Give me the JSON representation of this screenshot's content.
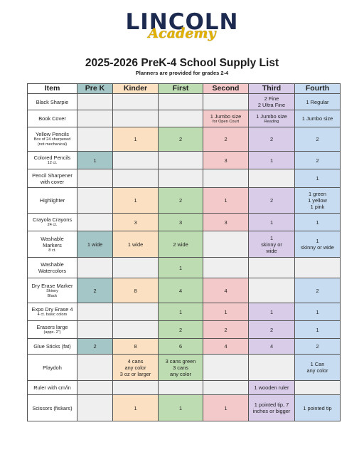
{
  "logo": {
    "main": "LINCOLN",
    "script": "Academy"
  },
  "title": "2025-2026 PreK-4 School Supply List",
  "subtitle": "Planners are provided for grades 2-4",
  "columns": [
    "Item",
    "Pre K",
    "Kinder",
    "First",
    "Second",
    "Third",
    "Fourth"
  ],
  "colors": {
    "prek": "#a5c6c6",
    "kinder": "#fbe1c1",
    "first": "#bedcb1",
    "second": "#f3c9c9",
    "third": "#d8cce9",
    "fourth": "#c7dcf0",
    "blank": "#efefef"
  },
  "rows": [
    {
      "item": [
        "Black Sharpie"
      ],
      "h": 23,
      "cells": [
        "",
        "",
        "",
        "",
        "2 Fine\n2 Ultra Fine",
        "1 Regular"
      ]
    },
    {
      "item": [
        "Book Cover"
      ],
      "h": 24,
      "cells": [
        "",
        "",
        "",
        "1 Jumbo size|for Open Court",
        "1 Jumbo size|Reading",
        "1 Jumbo size"
      ]
    },
    {
      "item": [
        "Yellow Pencils",
        "Box of 24 sharpened",
        "(not mechanical)"
      ],
      "h": 34,
      "cells": [
        "",
        "1",
        "2",
        "2",
        "2",
        "2"
      ]
    },
    {
      "item": [
        "Colored Pencils",
        "12 ct."
      ],
      "h": 25,
      "cells": [
        "1",
        "",
        "",
        "3",
        "1",
        "2"
      ]
    },
    {
      "item": [
        "Pencil Sharpener",
        "with cover"
      ],
      "h": 26,
      "cells": [
        "",
        "",
        "",
        "",
        "",
        "1"
      ]
    },
    {
      "item": [
        "Highlighter"
      ],
      "h": 36,
      "cells": [
        "",
        "1",
        "2",
        "1",
        "2",
        "1 green\n1 yellow\n1 pink"
      ]
    },
    {
      "item": [
        "Crayola Crayons",
        "24 ct."
      ],
      "h": 25,
      "cells": [
        "",
        "3",
        "3",
        "3",
        "1",
        "1"
      ]
    },
    {
      "item": [
        "Washable",
        "Markers",
        "8 ct."
      ],
      "h": 37,
      "cells": [
        "1 wide",
        "1 wide",
        "2 wide",
        "",
        "1\nskinny or\nwide",
        "1\nskinny or wide"
      ]
    },
    {
      "item": [
        "Washable",
        "Watercolors"
      ],
      "h": 29,
      "cells": [
        "",
        "",
        "1",
        "",
        "",
        ""
      ]
    },
    {
      "item": [
        "Dry Erase Marker",
        "Skinny",
        "Black"
      ],
      "h": 35,
      "cells": [
        "2",
        "8",
        "4",
        "4",
        "",
        "2"
      ]
    },
    {
      "item": [
        "Expo Dry Erase 4",
        "4 ct. basic colors"
      ],
      "h": 25,
      "cells": [
        "",
        "",
        "1",
        "1",
        "1",
        "1"
      ]
    },
    {
      "item": [
        "Erasers large",
        "(appx. 2\")"
      ],
      "h": 25,
      "cells": [
        "",
        "",
        "2",
        "2",
        "2",
        "1"
      ]
    },
    {
      "item": [
        "Glue Sticks (fat)"
      ],
      "h": 22,
      "cells": [
        "2",
        "8",
        "6",
        "4",
        "4",
        "2"
      ]
    },
    {
      "item": [
        "Playdoh"
      ],
      "h": 37,
      "cells": [
        "",
        "4 cans\nany color\n3 oz or larger",
        "3 cans green\n3 cans\nany color",
        "",
        "",
        "1 Can\nany color"
      ]
    },
    {
      "item": [
        "Ruler with cm/in"
      ],
      "h": 20,
      "cells": [
        "",
        "",
        "",
        "",
        "1 wooden ruler",
        ""
      ]
    },
    {
      "item": [
        "Scissors (fiskars)"
      ],
      "h": 37,
      "cells": [
        "",
        "1",
        "1",
        "1",
        "1 pointed tip, 7\ninches or bigger",
        "1 pointed tip"
      ]
    }
  ]
}
